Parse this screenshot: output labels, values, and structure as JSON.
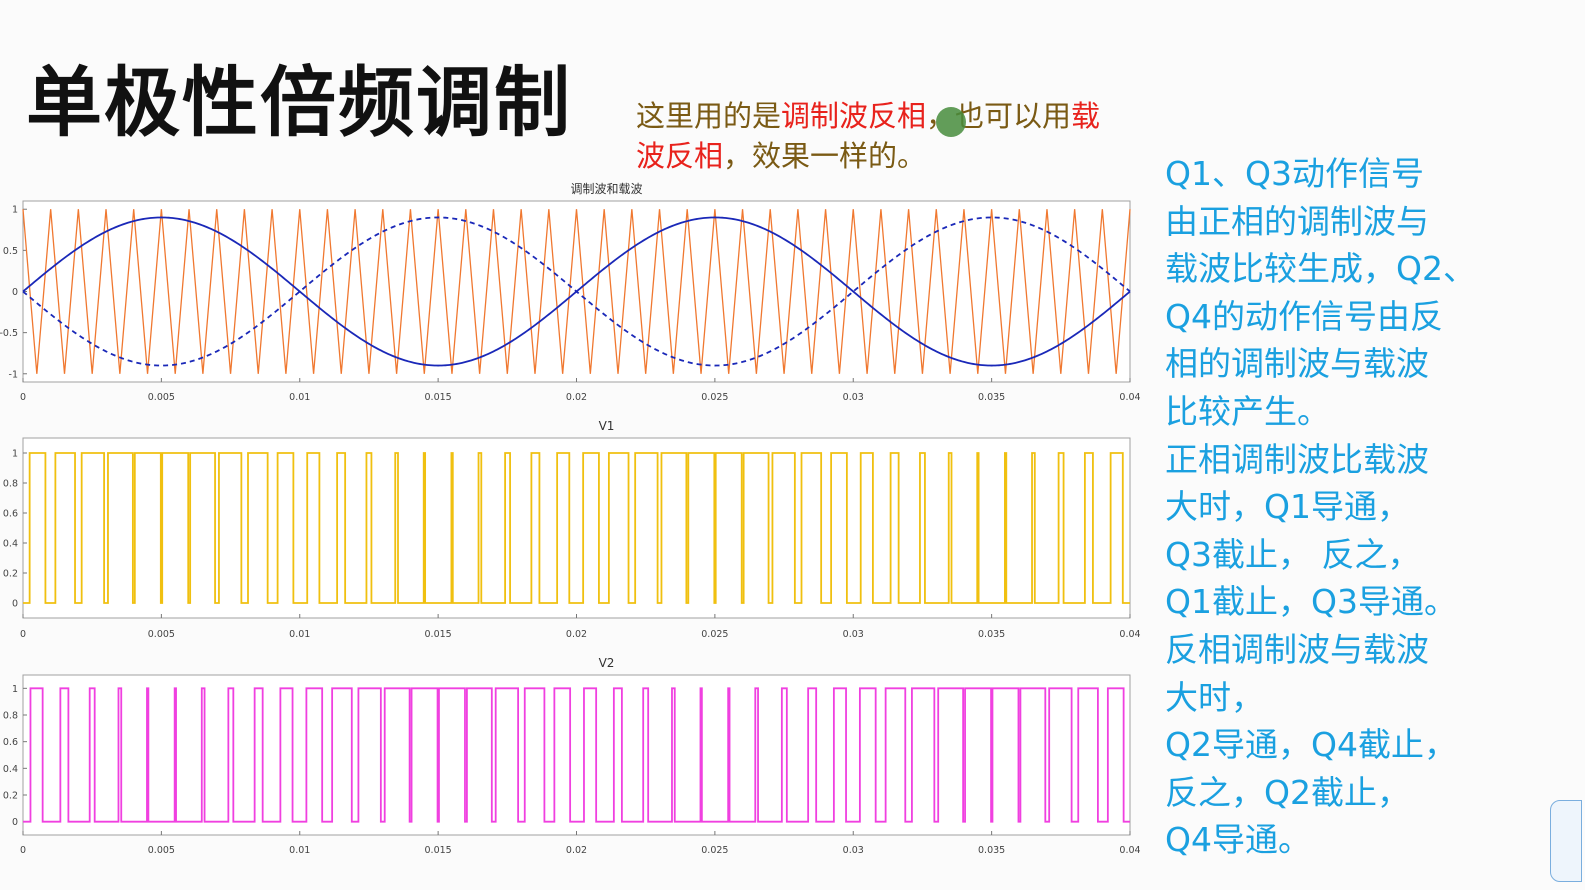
{
  "slide": {
    "title": "单极性倍频调制",
    "note_parts": [
      {
        "text": "这里用的是",
        "color": "normal"
      },
      {
        "text": "调制波反相",
        "color": "red"
      },
      {
        "text": "，也可以用",
        "color": "normal"
      },
      {
        "text": "载波反相",
        "color": "red"
      },
      {
        "text": "，效果一样的。",
        "color": "normal"
      }
    ],
    "side_lines": [
      "Q1、Q3动作信号",
      "由正相的调制波与",
      "载波比较生成，Q2、",
      "Q4的动作信号由反",
      "相的调制波与载波",
      "比较产生。",
      "正相调制波比载波",
      "大时，Q1导通，",
      "Q3截止， 反之，",
      "Q1截止，Q3导通。",
      "反相调制波与载波",
      "大时，",
      "Q2导通，Q4截止，",
      "反之，Q2截止，",
      "Q4导通。"
    ]
  },
  "colors": {
    "carrier": "#f07830",
    "modulation": "#1a28b8",
    "v1": "#f0c010",
    "v2": "#f040e0",
    "note_red": "#e8221c",
    "side_text": "#1aa0e0"
  },
  "chart_data": [
    {
      "type": "line",
      "title": "调制波和载波",
      "xlim": [
        0,
        0.04
      ],
      "ylim": [
        -1.1,
        1.1
      ],
      "x_ticks": [
        "0",
        "0.005",
        "0.01",
        "0.015",
        "0.02",
        "0.025",
        "0.03",
        "0.035",
        "0.04"
      ],
      "y_ticks": [
        "1",
        "0.5",
        "0",
        "-0.5",
        "-1"
      ],
      "series": [
        {
          "kind": "carrier",
          "shape": "triangle",
          "amplitude": 1,
          "frequency_hz": 1000,
          "style": "solid",
          "color": "#f07830"
        },
        {
          "kind": "modulation",
          "shape": "sine",
          "amplitude": 0.9,
          "frequency_hz": 50,
          "phase": 0,
          "style": "solid",
          "color": "#1a28b8"
        },
        {
          "kind": "modulation_inverted",
          "shape": "sine",
          "amplitude": 0.9,
          "frequency_hz": 50,
          "phase": 180,
          "style": "dashed",
          "color": "#1a28b8"
        }
      ]
    },
    {
      "type": "line",
      "title": "V1",
      "xlim": [
        0,
        0.04
      ],
      "ylim": [
        -0.1,
        1.1
      ],
      "x_ticks": [
        "0",
        "0.005",
        "0.01",
        "0.015",
        "0.02",
        "0.025",
        "0.03",
        "0.035",
        "0.04"
      ],
      "y_ticks": [
        "1",
        "0.8",
        "0.6",
        "0.4",
        "0.2",
        "0"
      ],
      "series": [
        {
          "kind": "pwm",
          "rule": "sine > carrier",
          "color": "#f0c010"
        }
      ]
    },
    {
      "type": "line",
      "title": "V2",
      "xlim": [
        0,
        0.04
      ],
      "ylim": [
        -0.1,
        1.1
      ],
      "x_ticks": [
        "0",
        "0.005",
        "0.01",
        "0.015",
        "0.02",
        "0.025",
        "0.03",
        "0.035",
        "0.04"
      ],
      "y_ticks": [
        "1",
        "0.8",
        "0.6",
        "0.4",
        "0.2",
        "0"
      ],
      "series": [
        {
          "kind": "pwm",
          "rule": "-sine > carrier",
          "color": "#f040e0"
        }
      ]
    }
  ]
}
